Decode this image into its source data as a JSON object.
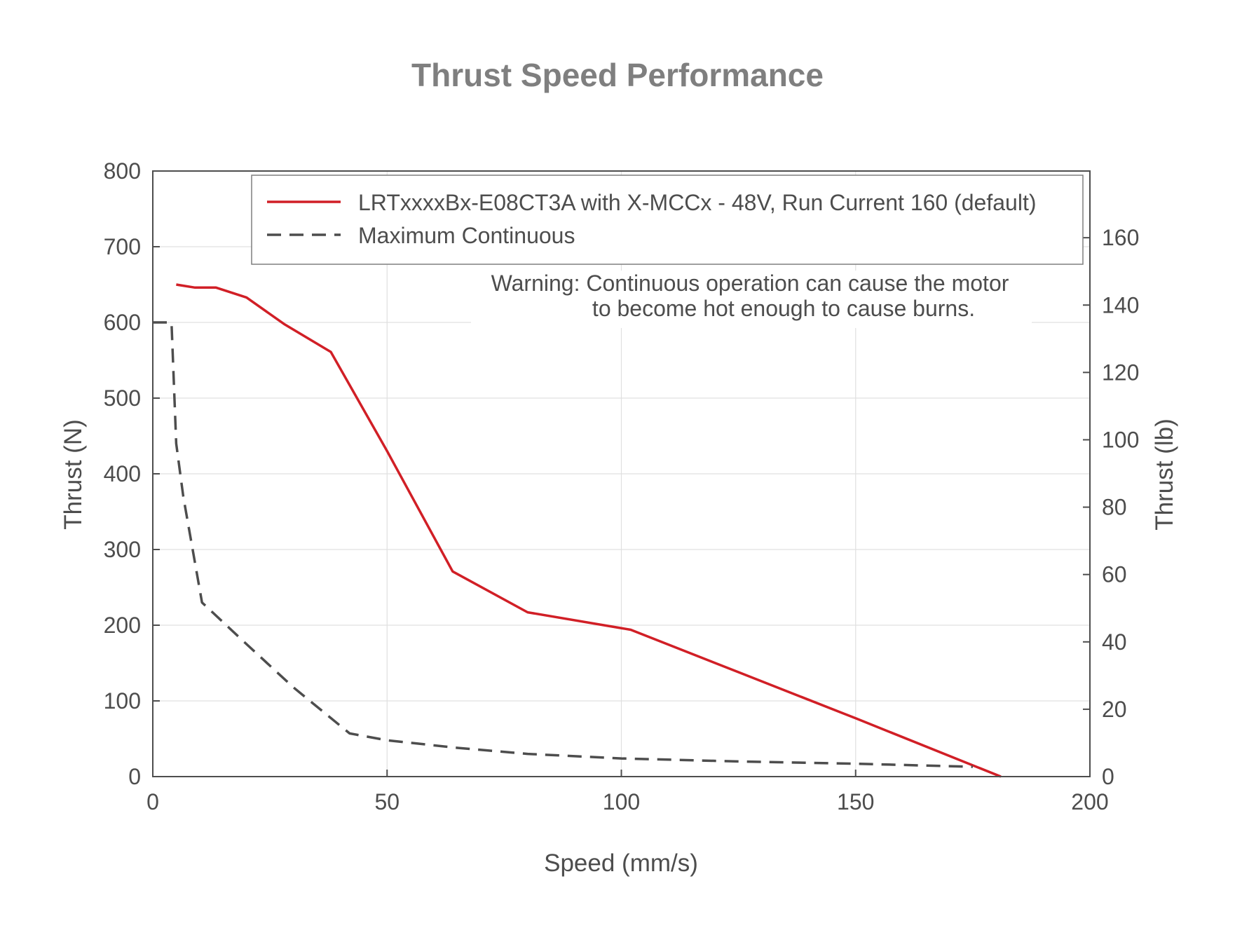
{
  "chart_data": {
    "type": "line",
    "title": "Thrust Speed Performance",
    "xlabel": "Speed (mm/s)",
    "ylabel": "Thrust (N)",
    "ylabel_right": "Thrust (lb)",
    "xlim": [
      0,
      200
    ],
    "ylim": [
      0,
      800
    ],
    "ylim_right": [
      0,
      179.8
    ],
    "x_ticks": [
      "0",
      "50",
      "100",
      "150",
      "200"
    ],
    "y_ticks": [
      "0",
      "100",
      "200",
      "300",
      "400",
      "500",
      "600",
      "700",
      "800"
    ],
    "y_ticks_right": [
      "0",
      "20",
      "40",
      "60",
      "80",
      "100",
      "120",
      "140",
      "160"
    ],
    "grid": true,
    "legend_position": "top-right",
    "annotation": {
      "line1": "Warning: Continuous operation can cause the motor",
      "line2": "to become hot enough to cause burns."
    },
    "series": [
      {
        "name": "LRTxxxxBx-E08CT3A with X-MCCx - 48V, Run Current 160 (default)",
        "color": "#d11f26",
        "style": "solid",
        "x": [
          5,
          9,
          13.5,
          20,
          28,
          38,
          50,
          64,
          80,
          102,
          125,
          150,
          181
        ],
        "y": [
          650,
          646,
          646,
          633,
          598,
          561,
          430,
          271,
          217,
          194,
          138,
          77,
          0
        ]
      },
      {
        "name": "Maximum Continuous",
        "color": "#4d4d4d",
        "style": "dashed",
        "x": [
          0,
          4,
          5,
          6.5,
          10.5,
          20,
          30,
          42,
          50,
          65,
          80,
          100,
          125,
          150,
          175
        ],
        "y": [
          600,
          600,
          440,
          370,
          230,
          175,
          118,
          57,
          48,
          38,
          30,
          24,
          20,
          17,
          13
        ]
      }
    ]
  }
}
